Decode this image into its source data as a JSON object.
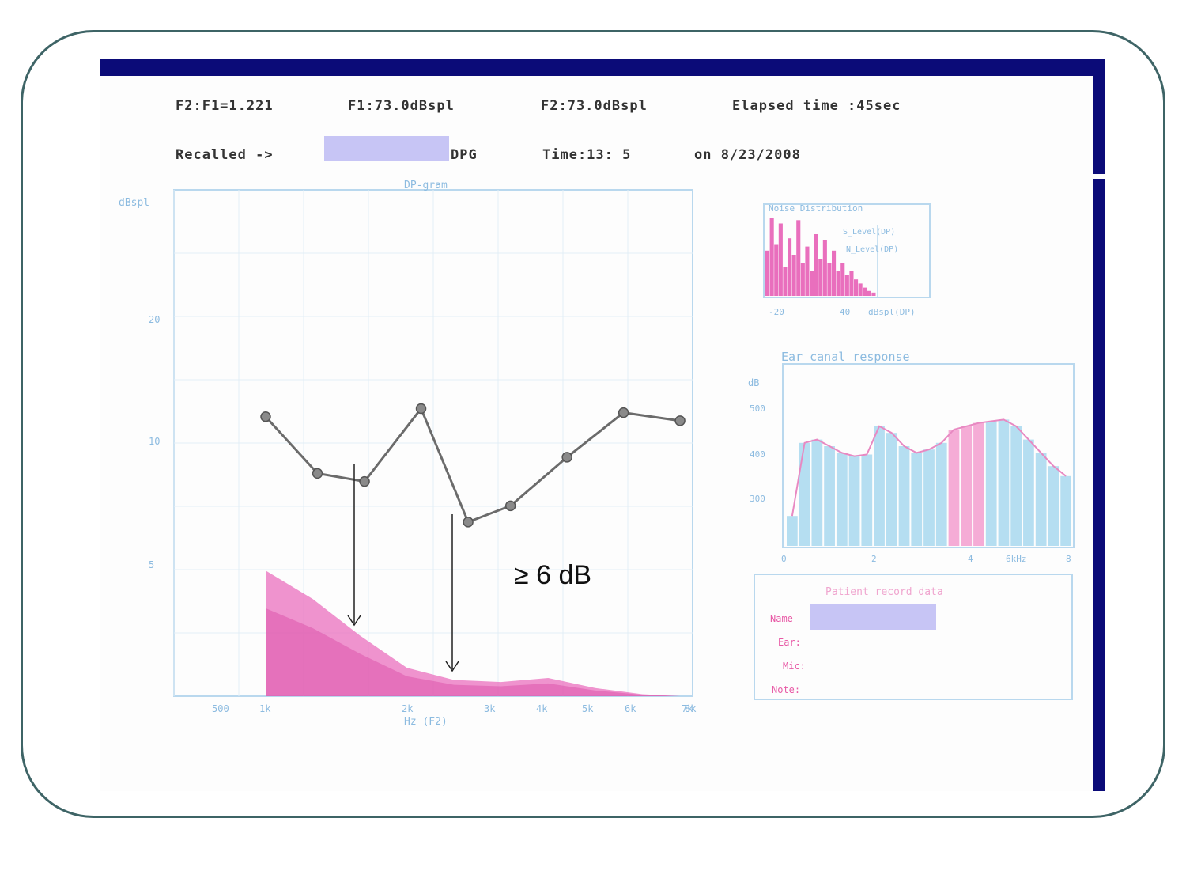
{
  "header": {
    "ratio": "F2:F1=1.221",
    "f1": "F1:73.0dBspl",
    "f2": "F2:73.0dBspl",
    "elapsed": "Elapsed time :45sec",
    "recalled_prefix": "Recalled ->",
    "recalled_suffix": "DPG",
    "time": "Time:13: 5",
    "date": "on 8/23/2008"
  },
  "patient_record": {
    "title": "Patient record data",
    "fields": [
      "Name",
      "Ear:",
      "Mic:",
      "Note:"
    ]
  },
  "annotation": "≥ 6 dB",
  "colors": {
    "frame": "#3e6466",
    "screen_bar": "#0b0b78",
    "noise_fill": "#e96fbd",
    "response_bar": "#a8d8ee",
    "response_bar_highlight": "#f39ecf",
    "redaction": "#c7c5f5",
    "dp_line": "#6b6b6b"
  },
  "chart_data": [
    {
      "type": "line",
      "title": "DP-gram",
      "ylabel": "dBspl",
      "xlabel": "Hz (F2)",
      "x_tick_labels": [
        "500",
        "1k",
        "",
        "2k",
        "3k",
        "4k",
        "5k",
        "6k",
        "7k",
        "8k"
      ],
      "y_tick_labels": [
        "5",
        "10",
        "20"
      ],
      "series": [
        {
          "kind": "dp",
          "x_frac": [
            0.0,
            0.11,
            0.21,
            0.33,
            0.43,
            0.52,
            0.64,
            0.76,
            0.88
          ],
          "values": [
            13.8,
            11.0,
            10.6,
            14.2,
            8.6,
            9.4,
            11.8,
            14.0,
            13.6
          ]
        },
        {
          "kind": "noise",
          "x_frac": [
            0.0,
            0.1,
            0.2,
            0.3,
            0.4,
            0.5,
            0.6,
            0.7,
            0.8,
            0.88
          ],
          "values": [
            6.2,
            4.8,
            3.0,
            1.4,
            0.8,
            0.7,
            0.9,
            0.4,
            0.1,
            0.0
          ]
        }
      ],
      "ylim": [
        0,
        25
      ]
    },
    {
      "type": "bar",
      "title": "Noise Distribution",
      "legend": [
        "S_Level(DP)",
        "N_Level(DP)"
      ],
      "xlabel": "dBspl(DP)",
      "x_tick_labels": [
        "-20",
        "40"
      ],
      "values": [
        0.55,
        0.95,
        0.62,
        0.88,
        0.35,
        0.7,
        0.5,
        0.92,
        0.4,
        0.6,
        0.3,
        0.75,
        0.45,
        0.68,
        0.4,
        0.55,
        0.3,
        0.4,
        0.25,
        0.3,
        0.2,
        0.15,
        0.1,
        0.06,
        0.04
      ]
    },
    {
      "type": "bar",
      "title": "Ear canal response",
      "ylabel": "dB",
      "x_tick_labels": [
        "0",
        "2",
        "4",
        "6kHz",
        "8"
      ],
      "y_tick_labels": [
        "500",
        "400",
        "300"
      ],
      "values": [
        0.18,
        0.62,
        0.64,
        0.6,
        0.56,
        0.54,
        0.55,
        0.72,
        0.68,
        0.6,
        0.56,
        0.58,
        0.62,
        0.7,
        0.72,
        0.74,
        0.75,
        0.76,
        0.72,
        0.64,
        0.56,
        0.48,
        0.42
      ],
      "highlight_from": 13,
      "highlight_to": 15
    }
  ]
}
